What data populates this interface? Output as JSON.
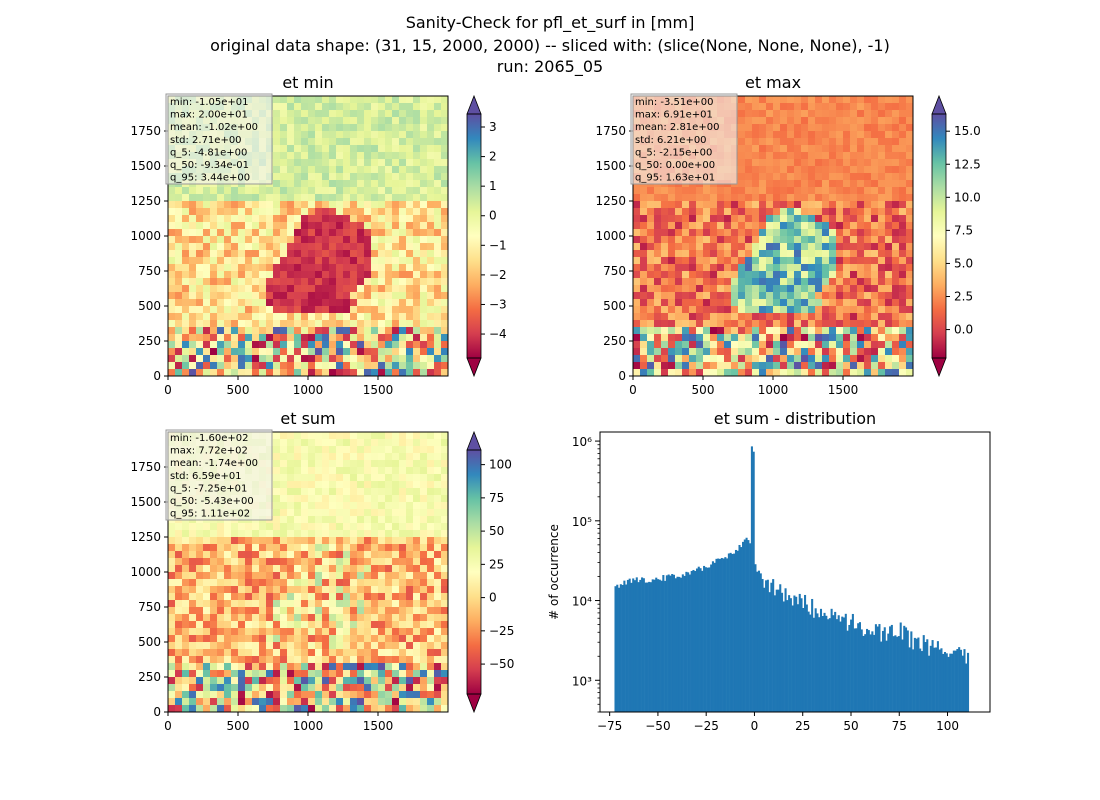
{
  "figure": {
    "suptitle_lines": [
      "Sanity-Check for pfl_et_surf in [mm]",
      "original data shape: (31, 15, 2000, 2000) -- sliced with: (slice(None, None, None), -1)",
      "run: 2065_05"
    ]
  },
  "colormap": {
    "name": "Spectral",
    "stops": [
      "#9e0142",
      "#d53e4f",
      "#f46d43",
      "#fdae61",
      "#fee08b",
      "#ffffbf",
      "#e6f598",
      "#abdda4",
      "#66c2a5",
      "#3288bd",
      "#5e4fa2"
    ]
  },
  "chart_data": [
    {
      "type": "heatmap",
      "title": "et min",
      "xlim": [
        0,
        2000
      ],
      "ylim": [
        0,
        2000
      ],
      "xticks": [
        "0",
        "500",
        "1000",
        "1500"
      ],
      "yticks": [
        "0",
        "250",
        "500",
        "750",
        "1000",
        "1250",
        "1500",
        "1750"
      ],
      "colorbar": {
        "min": -4.81,
        "max": 3.44,
        "ticks": [
          "−4",
          "−3",
          "−2",
          "−1",
          "0",
          "1",
          "2",
          "3"
        ],
        "tick_values": [
          -4,
          -3,
          -2,
          -1,
          0,
          1,
          2,
          3
        ],
        "extend": "both"
      },
      "stats": [
        "min: -1.05e+01",
        "max: 2.00e+01",
        "mean: -1.02e+00",
        "std: 2.71e+00",
        "q_5: -4.81e+00",
        "q_50: -9.34e-01",
        "q_95: 3.44e+00"
      ]
    },
    {
      "type": "heatmap",
      "title": "et max",
      "xlim": [
        0,
        2000
      ],
      "ylim": [
        0,
        2000
      ],
      "xticks": [
        "0",
        "500",
        "1000",
        "1500"
      ],
      "yticks": [
        "0",
        "250",
        "500",
        "750",
        "1000",
        "1250",
        "1500",
        "1750"
      ],
      "colorbar": {
        "min": -2.15,
        "max": 16.3,
        "ticks": [
          "0.0",
          "2.5",
          "5.0",
          "7.5",
          "10.0",
          "12.5",
          "15.0"
        ],
        "tick_values": [
          0,
          2.5,
          5,
          7.5,
          10,
          12.5,
          15
        ],
        "extend": "both"
      },
      "stats": [
        "min: -3.51e+00",
        "max: 6.91e+01",
        "mean: 2.81e+00",
        "std: 6.21e+00",
        "q_5: -2.15e+00",
        "q_50: 0.00e+00",
        "q_95: 1.63e+01"
      ]
    },
    {
      "type": "heatmap",
      "title": "et sum",
      "xlim": [
        0,
        2000
      ],
      "ylim": [
        0,
        2000
      ],
      "xticks": [
        "0",
        "500",
        "1000",
        "1500"
      ],
      "yticks": [
        "0",
        "250",
        "500",
        "750",
        "1000",
        "1250",
        "1500",
        "1750"
      ],
      "colorbar": {
        "min": -72.5,
        "max": 111,
        "ticks": [
          "−50",
          "−25",
          "0",
          "25",
          "50",
          "75",
          "100"
        ],
        "tick_values": [
          -50,
          -25,
          0,
          25,
          50,
          75,
          100
        ],
        "extend": "both"
      },
      "stats": [
        "min: -1.60e+02",
        "max: 7.72e+02",
        "mean: -1.74e+00",
        "std: 6.59e+01",
        "q_5: -7.25e+01",
        "q_50: -5.43e+00",
        "q_95: 1.11e+02"
      ]
    },
    {
      "type": "bar",
      "title": "et sum - distribution",
      "ylabel": "# of occurrence",
      "xlabel": "",
      "yscale": "log",
      "xlim": [
        -80,
        122
      ],
      "ylim": [
        400,
        1300000
      ],
      "xticks": [
        "−75",
        "−50",
        "−25",
        "0",
        "25",
        "50",
        "75",
        "100"
      ],
      "xtick_values": [
        -75,
        -50,
        -25,
        0,
        25,
        50,
        75,
        100
      ],
      "yticks": [
        "10³",
        "10⁴",
        "10⁵",
        "10⁶"
      ],
      "color": "#1f77b4",
      "bin_range": [
        -72.5,
        111
      ],
      "bin_count": 200,
      "anchors": [
        [
          -72.5,
          14500
        ],
        [
          -65,
          18000
        ],
        [
          -55,
          18500
        ],
        [
          -45,
          19500
        ],
        [
          -40,
          20500
        ],
        [
          -30,
          24000
        ],
        [
          -20,
          31000
        ],
        [
          -15,
          35000
        ],
        [
          -10,
          42000
        ],
        [
          -6,
          52000
        ],
        [
          -4,
          62000
        ],
        [
          -2,
          48000
        ],
        [
          -1,
          800000
        ],
        [
          0,
          55000
        ],
        [
          0.5,
          24000
        ],
        [
          5,
          19000
        ],
        [
          10,
          15000
        ],
        [
          20,
          11000
        ],
        [
          30,
          8500
        ],
        [
          40,
          7000
        ],
        [
          50,
          5500
        ],
        [
          60,
          4500
        ],
        [
          70,
          3800
        ],
        [
          75,
          5000
        ],
        [
          80,
          3400
        ],
        [
          90,
          2800
        ],
        [
          100,
          2400
        ],
        [
          105,
          2200
        ],
        [
          111,
          2000
        ]
      ]
    }
  ]
}
